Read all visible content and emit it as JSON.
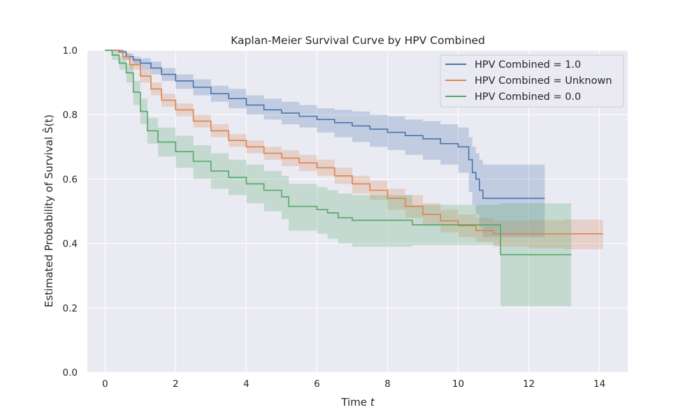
{
  "chart_data": {
    "type": "line",
    "title": "Kaplan-Meier Survival Curve by HPV Combined",
    "xlabel": "Time",
    "xlabel_var": "t",
    "ylabel": "Estimated Probability of Survival Ŝ(t)",
    "xlim": [
      -0.5,
      14.8
    ],
    "ylim": [
      0.0,
      1.0
    ],
    "xticks": [
      "0",
      "2",
      "4",
      "6",
      "8",
      "10",
      "12",
      "14"
    ],
    "yticks": [
      "0.0",
      "0.2",
      "0.4",
      "0.6",
      "0.8",
      "1.0"
    ],
    "grid": true,
    "legend_position": "top-right",
    "series": [
      {
        "name": "HPV Combined = 1.0",
        "color": "#4c72b0",
        "x": [
          0,
          0.2,
          0.4,
          0.6,
          0.8,
          1.0,
          1.3,
          1.6,
          2.0,
          2.5,
          3.0,
          3.5,
          4.0,
          4.5,
          5.0,
          5.5,
          6.0,
          6.5,
          7.0,
          7.5,
          8.0,
          8.5,
          9.0,
          9.5,
          10.0,
          10.3,
          10.4,
          10.5,
          10.6,
          10.7,
          11.0,
          12.0,
          12.45
        ],
        "y": [
          1.0,
          1.0,
          0.995,
          0.98,
          0.97,
          0.96,
          0.945,
          0.925,
          0.905,
          0.885,
          0.865,
          0.85,
          0.83,
          0.815,
          0.805,
          0.795,
          0.785,
          0.775,
          0.765,
          0.755,
          0.745,
          0.735,
          0.725,
          0.71,
          0.7,
          0.66,
          0.62,
          0.6,
          0.565,
          0.54,
          0.54,
          0.54,
          0.54
        ],
        "lower": [
          1.0,
          1.0,
          0.99,
          0.97,
          0.955,
          0.94,
          0.925,
          0.905,
          0.88,
          0.86,
          0.84,
          0.82,
          0.8,
          0.785,
          0.77,
          0.76,
          0.745,
          0.73,
          0.715,
          0.7,
          0.69,
          0.675,
          0.66,
          0.645,
          0.62,
          0.56,
          0.52,
          0.49,
          0.45,
          0.42,
          0.42,
          0.42,
          0.42
        ],
        "upper": [
          1.0,
          1.0,
          1.0,
          0.99,
          0.98,
          0.975,
          0.965,
          0.945,
          0.925,
          0.91,
          0.89,
          0.88,
          0.86,
          0.85,
          0.84,
          0.83,
          0.82,
          0.815,
          0.81,
          0.8,
          0.795,
          0.785,
          0.78,
          0.77,
          0.76,
          0.73,
          0.7,
          0.68,
          0.66,
          0.645,
          0.645,
          0.645,
          0.645
        ]
      },
      {
        "name": "HPV Combined = Unknown",
        "color": "#dd8452",
        "x": [
          0,
          0.3,
          0.5,
          0.7,
          1.0,
          1.3,
          1.6,
          2.0,
          2.5,
          3.0,
          3.5,
          4.0,
          4.5,
          5.0,
          5.5,
          6.0,
          6.5,
          7.0,
          7.5,
          8.0,
          8.5,
          9.0,
          9.5,
          10.0,
          10.5,
          11.0,
          12.0,
          13.0,
          14.1
        ],
        "y": [
          1.0,
          1.0,
          0.98,
          0.955,
          0.92,
          0.88,
          0.845,
          0.815,
          0.78,
          0.75,
          0.72,
          0.7,
          0.68,
          0.665,
          0.65,
          0.635,
          0.61,
          0.585,
          0.565,
          0.54,
          0.515,
          0.49,
          0.47,
          0.455,
          0.44,
          0.43,
          0.43,
          0.43,
          0.43
        ],
        "lower": [
          1.0,
          1.0,
          0.97,
          0.94,
          0.9,
          0.86,
          0.825,
          0.795,
          0.76,
          0.73,
          0.7,
          0.68,
          0.66,
          0.64,
          0.625,
          0.61,
          0.585,
          0.555,
          0.535,
          0.505,
          0.48,
          0.455,
          0.435,
          0.42,
          0.405,
          0.39,
          0.385,
          0.382,
          0.38
        ],
        "upper": [
          1.0,
          1.0,
          0.99,
          0.97,
          0.94,
          0.9,
          0.865,
          0.835,
          0.8,
          0.77,
          0.74,
          0.72,
          0.7,
          0.69,
          0.675,
          0.66,
          0.635,
          0.61,
          0.595,
          0.57,
          0.55,
          0.525,
          0.505,
          0.49,
          0.48,
          0.47,
          0.472,
          0.474,
          0.475
        ]
      },
      {
        "name": "HPV Combined = 0.0",
        "color": "#55a868",
        "x": [
          0,
          0.2,
          0.4,
          0.6,
          0.8,
          1.0,
          1.2,
          1.5,
          2.0,
          2.5,
          3.0,
          3.5,
          4.0,
          4.5,
          5.0,
          5.2,
          5.5,
          6.0,
          6.3,
          6.6,
          7.0,
          7.5,
          8.0,
          8.5,
          8.7,
          9.0,
          10.0,
          11.0,
          11.2,
          12.0,
          13.2
        ],
        "y": [
          1.0,
          0.985,
          0.96,
          0.93,
          0.87,
          0.81,
          0.75,
          0.715,
          0.685,
          0.655,
          0.625,
          0.605,
          0.585,
          0.565,
          0.545,
          0.515,
          0.515,
          0.505,
          0.495,
          0.48,
          0.472,
          0.472,
          0.472,
          0.472,
          0.458,
          0.458,
          0.458,
          0.458,
          0.365,
          0.365,
          0.365
        ],
        "lower": [
          1.0,
          0.97,
          0.94,
          0.9,
          0.83,
          0.77,
          0.71,
          0.67,
          0.635,
          0.6,
          0.57,
          0.55,
          0.525,
          0.5,
          0.475,
          0.44,
          0.44,
          0.43,
          0.415,
          0.4,
          0.39,
          0.39,
          0.39,
          0.39,
          0.395,
          0.395,
          0.395,
          0.395,
          0.205,
          0.205,
          0.205
        ],
        "upper": [
          1.0,
          1.0,
          0.98,
          0.955,
          0.905,
          0.85,
          0.79,
          0.76,
          0.735,
          0.705,
          0.68,
          0.66,
          0.645,
          0.625,
          0.61,
          0.585,
          0.585,
          0.575,
          0.565,
          0.555,
          0.55,
          0.55,
          0.55,
          0.55,
          0.52,
          0.52,
          0.52,
          0.52,
          0.525,
          0.525,
          0.525
        ]
      }
    ]
  }
}
